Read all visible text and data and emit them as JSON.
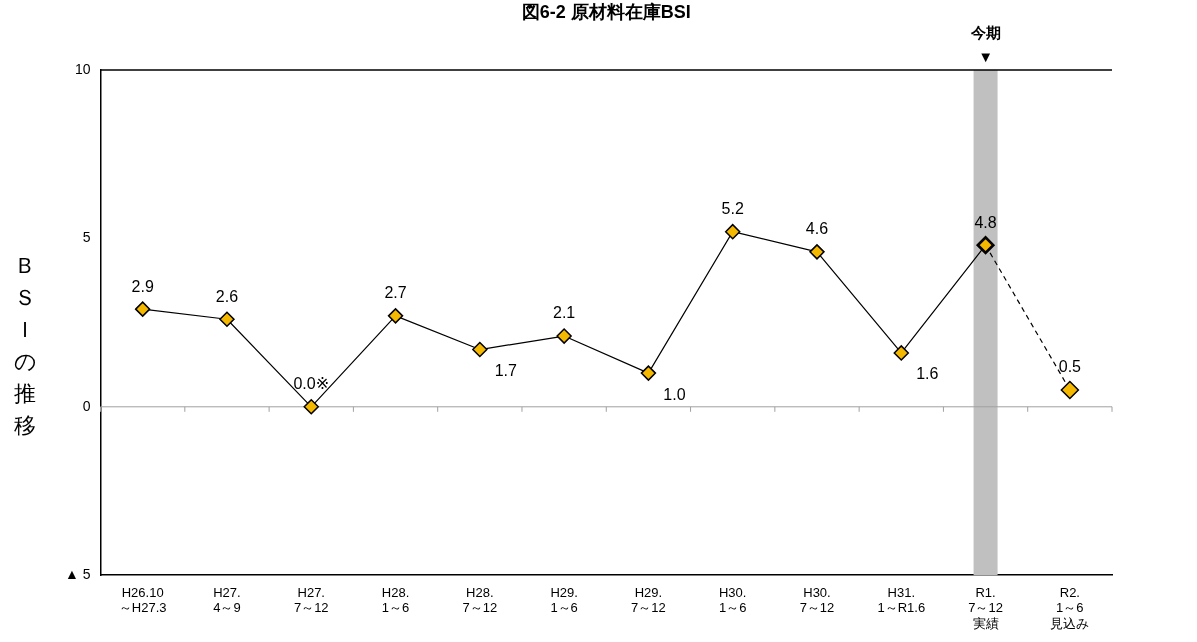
{
  "chart_data": {
    "type": "line",
    "title": "図6-2 原材料在庫BSI",
    "ylabel": "ＢＳＩの推移",
    "categories": [
      "H26.10\n～H27.3",
      "H27.\n4～9",
      "H27.\n7～12",
      "H28.\n1～6",
      "H28.\n7～12",
      "H29.\n1～6",
      "H29.\n7～12",
      "H30.\n1～6",
      "H30.\n7～12",
      "H31.\n1～R1.6",
      "R1.\n7～12\n実績",
      "R2.\n1～6\n見込み"
    ],
    "series": [
      {
        "color": "#000000",
        "marker": "diamond",
        "line_style": "solid",
        "values": [
          2.9,
          2.6,
          0.0,
          2.7,
          1.7,
          2.1,
          1.0,
          5.2,
          4.6,
          1.6,
          4.8,
          null
        ],
        "value_labels": [
          "2.9",
          "2.6",
          "0.0※",
          "2.7",
          "1.7",
          "2.1",
          "1.0",
          "5.2",
          "4.6",
          "1.6",
          "4.8",
          null
        ]
      },
      {
        "color": "#000000",
        "marker": "diamond",
        "line_style": "dashed",
        "values": [
          null,
          null,
          null,
          null,
          null,
          null,
          null,
          null,
          null,
          null,
          4.8,
          0.5
        ],
        "value_labels": [
          null,
          null,
          null,
          null,
          null,
          null,
          null,
          null,
          null,
          null,
          null,
          "0.5"
        ]
      }
    ],
    "ylim": [
      -5,
      10
    ],
    "yticks": [
      {
        "value": -5,
        "label": "▲ 5"
      },
      0,
      5,
      10
    ],
    "ref_lines": [
      {
        "axis": "y",
        "value": 0,
        "color": "#a0a0a0"
      }
    ],
    "bands": [
      {
        "axis": "x",
        "from": "R1.\n7～12\n実績",
        "to": "R1.\n7～12\n実績",
        "label": "今期\n▼",
        "color": "#c0c0c0"
      }
    ],
    "grid": false,
    "legend": false
  }
}
